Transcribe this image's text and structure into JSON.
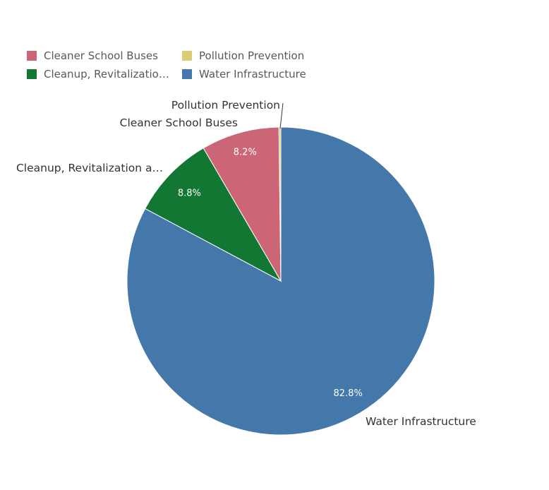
{
  "chart_data": {
    "type": "pie",
    "title": "",
    "start_angle_deg": 0,
    "direction": "clockwise",
    "slices": [
      {
        "key": "water",
        "name": "Water Infrastructure",
        "legend_label": "Water Infrastructure",
        "label": "Water Infrastructure",
        "value": 82.8,
        "pct_label": "82.8%",
        "color": "#4477aa"
      },
      {
        "key": "cleanup",
        "name": "Cleanup, Revitalization and Brownfields",
        "legend_label": "Cleanup, Revitalizatio…",
        "label": "Cleanup, Revitalization a…",
        "value": 8.8,
        "pct_label": "8.8%",
        "color": "#117733"
      },
      {
        "key": "buses",
        "name": "Cleaner School Buses",
        "legend_label": "Cleaner School Buses",
        "label": "Cleaner School Buses",
        "value": 8.2,
        "pct_label": "8.2%",
        "color": "#cc6677"
      },
      {
        "key": "pollution",
        "name": "Pollution Prevention",
        "legend_label": "Pollution Prevention",
        "label": "Pollution Prevention",
        "value": 0.2,
        "pct_label": "",
        "color": "#ddcc77"
      }
    ],
    "legend": {
      "position": "top-left",
      "order": [
        "buses",
        "pollution",
        "cleanup",
        "water"
      ]
    }
  }
}
